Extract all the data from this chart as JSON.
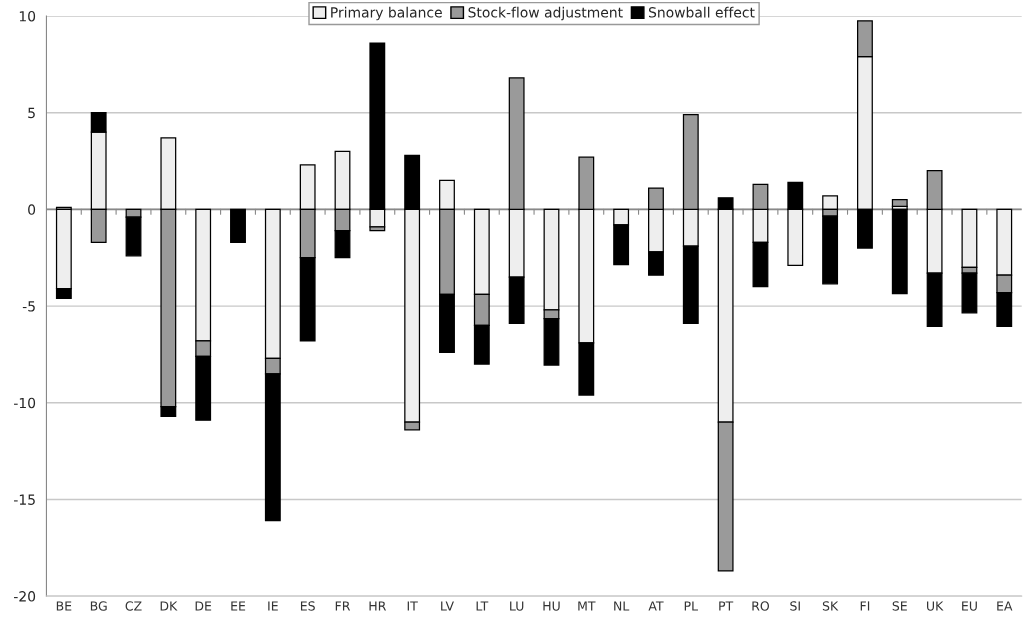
{
  "chart_data": {
    "type": "bar",
    "stacked": true,
    "categories": [
      "BE",
      "BG",
      "CZ",
      "DK",
      "DE",
      "EE",
      "IE",
      "ES",
      "FR",
      "HR",
      "IT",
      "LV",
      "LT",
      "LU",
      "HU",
      "MT",
      "NL",
      "AT",
      "PL",
      "PT",
      "RO",
      "SI",
      "SK",
      "FI",
      "SE",
      "UK",
      "EU",
      "EA"
    ],
    "series": [
      {
        "name": "Primary balance",
        "color": "#eeeeee",
        "values": [
          -4.1,
          4.0,
          null,
          3.7,
          -6.8,
          null,
          -7.7,
          2.3,
          3.0,
          -0.9,
          -11.0,
          1.5,
          -4.4,
          -3.5,
          -5.2,
          -6.9,
          -0.8,
          -2.2,
          -1.9,
          -11.0,
          -1.7,
          -2.9,
          0.7,
          7.9,
          0.15,
          -3.3,
          -3.0,
          -3.4
        ]
      },
      {
        "name": "Stock-flow adjustment",
        "color": "#9a9a9a",
        "values": [
          0.1,
          -1.7,
          -0.4,
          -10.2,
          -0.8,
          null,
          -0.8,
          -2.5,
          -1.1,
          -0.2,
          -0.4,
          -4.4,
          -1.6,
          6.8,
          -0.45,
          2.7,
          null,
          1.1,
          4.9,
          -7.7,
          1.3,
          null,
          -0.35,
          1.85,
          0.35,
          2.0,
          -0.3,
          -0.9
        ]
      },
      {
        "name": "Snowball effect",
        "color": "#000000",
        "values": [
          -0.5,
          1.0,
          -2.0,
          -0.5,
          -3.3,
          -1.7,
          -7.6,
          -4.3,
          -1.4,
          8.6,
          2.8,
          -3.0,
          -2.0,
          -2.4,
          -2.4,
          -2.7,
          -2.05,
          -1.2,
          -4.0,
          0.6,
          -2.3,
          1.4,
          -3.5,
          -2.0,
          -4.35,
          -2.75,
          -2.05,
          -1.75
        ]
      }
    ],
    "ylim": [
      -20,
      10
    ],
    "yticks": [
      -20,
      -15,
      -10,
      -5,
      0,
      5,
      10
    ],
    "grid": "y",
    "legend": "top"
  }
}
